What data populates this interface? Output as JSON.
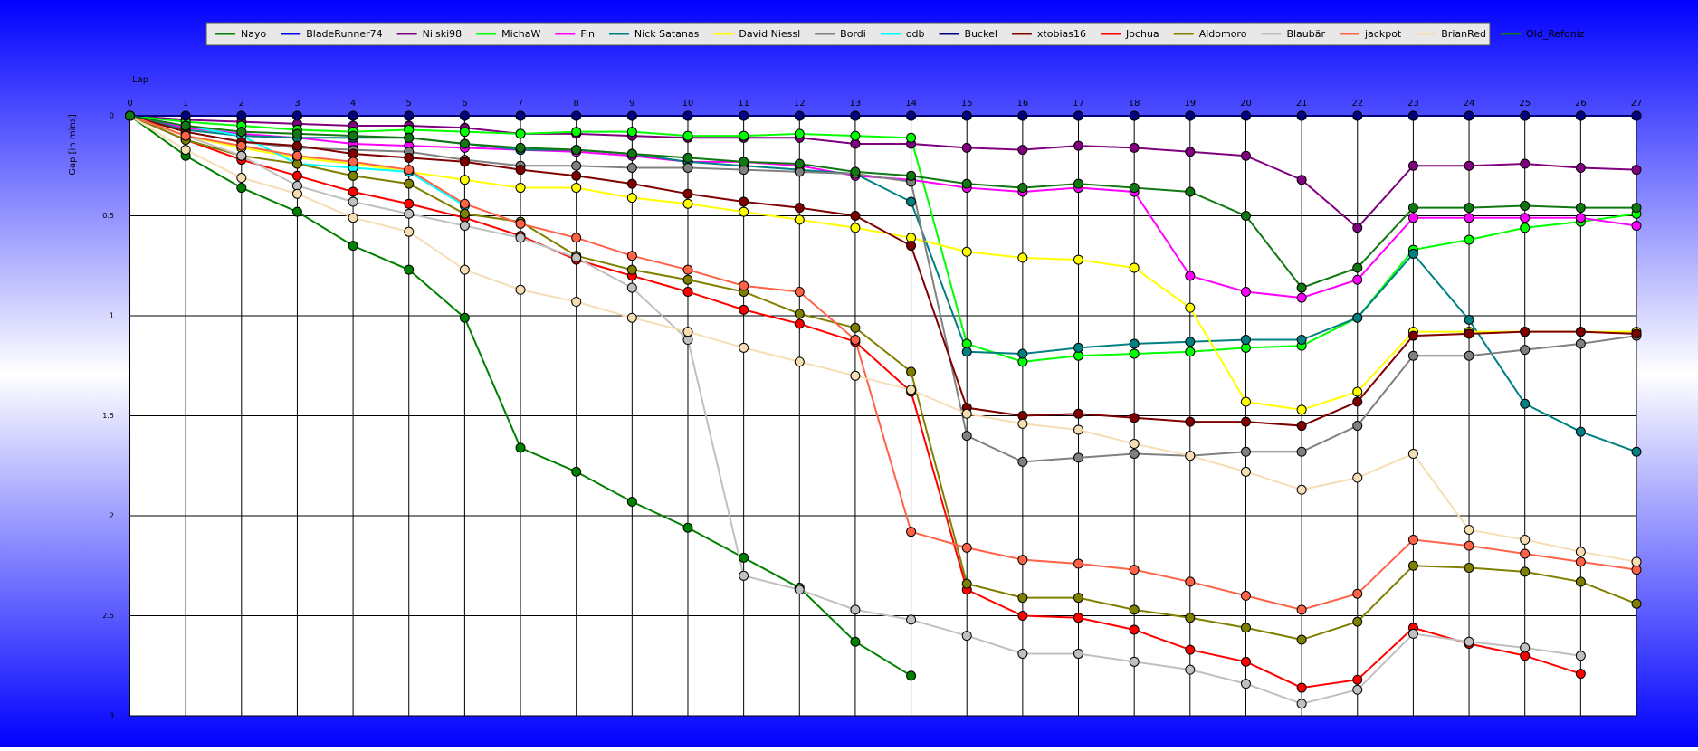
{
  "chart_data": {
    "type": "line",
    "x_label": "Lap",
    "y_label": "Gap [in mins]",
    "x": [
      0,
      1,
      2,
      3,
      4,
      5,
      6,
      7,
      8,
      9,
      10,
      11,
      12,
      13,
      14,
      15,
      16,
      17,
      18,
      19,
      20,
      21,
      22,
      23,
      24,
      25,
      26,
      27
    ],
    "xlim": [
      0,
      27
    ],
    "xticks": [
      0,
      1,
      2,
      3,
      4,
      5,
      6,
      7,
      8,
      9,
      10,
      11,
      12,
      13,
      14,
      15,
      16,
      17,
      18,
      19,
      20,
      21,
      22,
      23,
      24,
      25,
      26,
      27
    ],
    "ylim": [
      0,
      3
    ],
    "yticks": [
      0,
      0.5,
      1,
      1.5,
      2,
      2.5,
      3
    ],
    "y_inverted": true,
    "grid": true,
    "legend": "top",
    "series": [
      {
        "name": "Nayo",
        "color": "#008000",
        "values": [
          0,
          0.2,
          0.36,
          0.48,
          0.65,
          0.77,
          1.01,
          1.66,
          1.78,
          1.93,
          2.06,
          2.21,
          2.36,
          2.63,
          2.8,
          null,
          null,
          null,
          null,
          null,
          null,
          null,
          null,
          null,
          null,
          null,
          null,
          null
        ]
      },
      {
        "name": "BladeRunner74",
        "color": "#0000ff",
        "values": [
          0,
          0,
          0,
          0,
          0,
          0,
          0,
          0,
          0,
          0,
          0,
          0,
          0,
          0,
          0,
          0,
          0,
          0,
          0,
          0,
          0,
          0,
          0,
          0,
          0,
          0,
          0,
          0
        ]
      },
      {
        "name": "Nilski98",
        "color": "#800080",
        "values": [
          0,
          0.02,
          0.03,
          0.04,
          0.05,
          0.05,
          0.06,
          0.09,
          0.09,
          0.1,
          0.11,
          0.11,
          0.11,
          0.14,
          0.14,
          0.16,
          0.17,
          0.15,
          0.16,
          0.18,
          0.2,
          0.32,
          0.56,
          0.25,
          0.25,
          0.24,
          0.26,
          0.27
        ]
      },
      {
        "name": "MichaW",
        "color": "#00ff00",
        "values": [
          0,
          0.03,
          0.05,
          0.07,
          0.08,
          0.07,
          0.08,
          0.09,
          0.08,
          0.08,
          0.1,
          0.1,
          0.09,
          0.1,
          0.11,
          1.14,
          1.23,
          1.2,
          1.19,
          1.18,
          1.16,
          1.15,
          1.01,
          0.67,
          0.62,
          0.56,
          0.53,
          0.49
        ]
      },
      {
        "name": "Fin",
        "color": "#ff00ff",
        "values": [
          0,
          0.06,
          0.09,
          0.11,
          0.14,
          0.15,
          0.16,
          0.17,
          0.18,
          0.2,
          0.23,
          0.23,
          0.25,
          0.3,
          0.32,
          0.36,
          0.38,
          0.36,
          0.38,
          0.8,
          0.88,
          0.91,
          0.82,
          0.51,
          0.51,
          0.51,
          0.51,
          0.55
        ]
      },
      {
        "name": "Nick Satanas",
        "color": "#008080",
        "values": [
          0,
          0.07,
          0.1,
          0.11,
          0.11,
          0.11,
          0.14,
          0.17,
          0.17,
          0.19,
          0.23,
          0.25,
          0.27,
          0.29,
          0.43,
          1.18,
          1.19,
          1.16,
          1.14,
          1.13,
          1.12,
          1.12,
          1.01,
          0.69,
          1.02,
          1.44,
          1.58,
          1.68
        ]
      },
      {
        "name": "David Niessl",
        "color": "#ffff00",
        "values": [
          0,
          0.1,
          0.16,
          0.21,
          0.24,
          0.28,
          0.32,
          0.36,
          0.36,
          0.41,
          0.44,
          0.48,
          0.52,
          0.56,
          0.61,
          0.68,
          0.71,
          0.72,
          0.76,
          0.96,
          1.43,
          1.47,
          1.38,
          1.08,
          1.08,
          1.08,
          1.08,
          1.08
        ]
      },
      {
        "name": "Bordi",
        "color": "#808080",
        "values": [
          0,
          0.08,
          0.13,
          0.16,
          0.17,
          0.18,
          0.22,
          0.25,
          0.25,
          0.26,
          0.26,
          0.27,
          0.28,
          0.29,
          0.33,
          1.6,
          1.73,
          1.71,
          1.69,
          1.7,
          1.68,
          1.68,
          1.55,
          1.2,
          1.2,
          1.17,
          1.14,
          1.1
        ]
      },
      {
        "name": "odb",
        "color": "#00ffff",
        "values": [
          0,
          0.05,
          0.1,
          0.24,
          0.26,
          0.28,
          0.45,
          null,
          null,
          null,
          null,
          null,
          null,
          null,
          null,
          null,
          null,
          null,
          null,
          null,
          null,
          null,
          null,
          null,
          null,
          null,
          null,
          null
        ]
      },
      {
        "name": "Buckel",
        "color": "#000080",
        "values": [
          0,
          0,
          0,
          0,
          0,
          0,
          0,
          0,
          0,
          0,
          0,
          0,
          0,
          0,
          0,
          0,
          0,
          0,
          0,
          0,
          0,
          0,
          0,
          0,
          0,
          0,
          0,
          0
        ]
      },
      {
        "name": "xtobias16",
        "color": "#800000",
        "values": [
          0,
          0.08,
          0.13,
          0.15,
          0.19,
          0.21,
          0.23,
          0.27,
          0.3,
          0.34,
          0.39,
          0.43,
          0.46,
          0.5,
          0.65,
          1.46,
          1.5,
          1.49,
          1.51,
          1.53,
          1.53,
          1.55,
          1.43,
          1.1,
          1.09,
          1.08,
          1.08,
          1.09
        ]
      },
      {
        "name": "Jochua",
        "color": "#ff0000",
        "values": [
          0,
          0.12,
          0.22,
          0.3,
          0.38,
          0.44,
          0.51,
          0.6,
          0.72,
          0.8,
          0.88,
          0.97,
          1.04,
          1.13,
          1.38,
          2.37,
          2.5,
          2.51,
          2.57,
          2.67,
          2.73,
          2.86,
          2.82,
          2.56,
          2.64,
          2.7,
          2.79,
          null
        ]
      },
      {
        "name": "Aldomoro",
        "color": "#808000",
        "values": [
          0,
          0.12,
          0.2,
          0.24,
          0.3,
          0.34,
          0.49,
          0.53,
          0.7,
          0.77,
          0.82,
          0.88,
          0.99,
          1.06,
          1.28,
          2.34,
          2.41,
          2.41,
          2.47,
          2.51,
          2.56,
          2.62,
          2.53,
          2.25,
          2.26,
          2.28,
          2.33,
          2.44
        ]
      },
      {
        "name": "Blaubär",
        "color": "#c0c0c0",
        "values": [
          0,
          0.1,
          0.2,
          0.35,
          0.43,
          0.49,
          0.55,
          0.61,
          0.71,
          0.86,
          1.12,
          2.3,
          2.37,
          2.47,
          2.52,
          2.6,
          2.69,
          2.69,
          2.73,
          2.77,
          2.84,
          2.94,
          2.87,
          2.59,
          2.63,
          2.66,
          2.7,
          null
        ]
      },
      {
        "name": "jackpot",
        "color": "#ff6347",
        "values": [
          0,
          0.1,
          0.15,
          0.2,
          0.23,
          0.27,
          0.44,
          0.54,
          0.61,
          0.7,
          0.77,
          0.85,
          0.88,
          1.12,
          2.08,
          2.16,
          2.22,
          2.24,
          2.27,
          2.33,
          2.4,
          2.47,
          2.39,
          2.12,
          2.15,
          2.19,
          2.23,
          2.27
        ]
      },
      {
        "name": "BrianRed",
        "color": "#f5deb3",
        "values": [
          0,
          0.17,
          0.31,
          0.39,
          0.51,
          0.58,
          0.77,
          0.87,
          0.93,
          1.01,
          1.08,
          1.16,
          1.23,
          1.3,
          1.37,
          1.49,
          1.54,
          1.57,
          1.64,
          1.7,
          1.78,
          1.87,
          1.81,
          1.69,
          2.07,
          2.12,
          2.18,
          2.23
        ]
      },
      {
        "name": "Old_Refoniz",
        "color": "#107810",
        "values": [
          0,
          0.05,
          0.08,
          0.09,
          0.1,
          0.11,
          0.14,
          0.16,
          0.17,
          0.19,
          0.21,
          0.23,
          0.24,
          0.28,
          0.3,
          0.34,
          0.36,
          0.34,
          0.36,
          0.38,
          0.5,
          0.86,
          0.76,
          0.46,
          0.46,
          0.45,
          0.46,
          0.46
        ]
      }
    ]
  }
}
